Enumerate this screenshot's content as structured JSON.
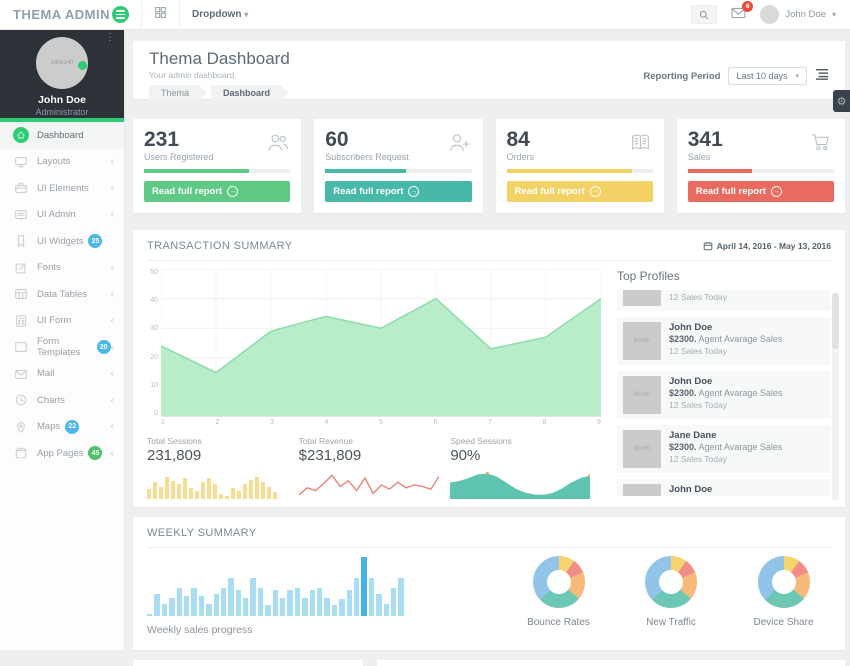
{
  "navbar": {
    "brand": "THEMA ADMIN",
    "dropdown_label": "Dropdown",
    "mail_badge": "6",
    "user_name": "John Doe"
  },
  "sidebar": {
    "user": {
      "name": "John Doe",
      "role": "Administrator",
      "avatar_placeholder": "140x140"
    },
    "items": [
      {
        "label": "Dashboard",
        "icon": "home",
        "active": true
      },
      {
        "label": "Layouts",
        "icon": "monitor",
        "chevron": true
      },
      {
        "label": "UI Elements",
        "icon": "briefcase",
        "chevron": true
      },
      {
        "label": "UI Admin",
        "icon": "screen",
        "chevron": true
      },
      {
        "label": "UI Widgets",
        "icon": "bookmark",
        "badge": "25",
        "badge_color": "#4db7ea"
      },
      {
        "label": "Fonts",
        "icon": "edit",
        "chevron": true
      },
      {
        "label": "Data Tables",
        "icon": "table",
        "chevron": true
      },
      {
        "label": "UI Form",
        "icon": "calculator",
        "chevron": true
      },
      {
        "label": "Form Templates",
        "icon": "window",
        "badge": "20",
        "badge_color": "#4db7ea",
        "chevron": true
      },
      {
        "label": "Mail",
        "icon": "mail",
        "chevron": true
      },
      {
        "label": "Charts",
        "icon": "clock",
        "chevron": true
      },
      {
        "label": "Maps",
        "icon": "pin",
        "badge": "22",
        "badge_color": "#4db7ea",
        "chevron": true
      },
      {
        "label": "App Pages",
        "icon": "package",
        "badge": "45",
        "badge_color": "#50c168",
        "chevron": true
      }
    ]
  },
  "header": {
    "title": "Thema Dashboard",
    "subtitle": "Your admin dashboard.",
    "breadcrumb": [
      "Thema",
      "Dashboard"
    ],
    "reporting_label": "Reporting Period",
    "reporting_value": "Last 10 days"
  },
  "stat_cards": [
    {
      "value": "231",
      "label": "Users Registered",
      "icon": "users",
      "color": "#5fca86",
      "progress": 72,
      "button": "Read full report"
    },
    {
      "value": "60",
      "label": "Subscribers Request",
      "icon": "user-plus",
      "color": "#48b8a9",
      "progress": 55,
      "button": "Read full report"
    },
    {
      "value": "84",
      "label": "Orders",
      "icon": "journal",
      "color": "#f2d264",
      "progress": 86,
      "button": "Read full report"
    },
    {
      "value": "341",
      "label": "Sales",
      "icon": "cart",
      "color": "#e96a5f",
      "progress": 44,
      "button": "Read full report"
    }
  ],
  "transaction": {
    "title": "TRANSACTION SUMMARY",
    "date_range": "April 14, 2016 - May 13, 2016",
    "chart_data": {
      "type": "area",
      "x": [
        1,
        2,
        3,
        4,
        5,
        6,
        7,
        8,
        9
      ],
      "values": [
        24,
        15,
        29,
        34,
        30,
        40,
        23,
        27,
        40
      ],
      "ylim": [
        0,
        50
      ],
      "yticks": [
        0,
        10,
        20,
        30,
        40,
        50
      ],
      "fill": "#b9edca",
      "stroke": "#8edbab",
      "grid": true
    },
    "mini_stats": [
      {
        "label": "Total Sessions",
        "value": "231,809",
        "spark": "bars",
        "color": "#f6dd92",
        "data": [
          35,
          60,
          45,
          80,
          65,
          55,
          75,
          40,
          28,
          60,
          75,
          55,
          20,
          12,
          40,
          28,
          55,
          68,
          80,
          60,
          45,
          25
        ]
      },
      {
        "label": "Total Revenue",
        "value": "$231,809",
        "spark": "line",
        "color": "#e8837a",
        "data": [
          15,
          40,
          30,
          55,
          85,
          45,
          65,
          30,
          75,
          20,
          50,
          35,
          60,
          40,
          50,
          45,
          35,
          80
        ]
      },
      {
        "label": "Speed Sessions",
        "value": "90%",
        "spark": "area",
        "color": "#5fc3b2",
        "data": [
          55,
          60,
          70,
          82,
          85,
          75,
          55,
          35,
          22,
          15,
          14,
          20,
          35,
          55,
          70,
          78
        ]
      }
    ],
    "profiles": {
      "title": "Top Profiles",
      "avatar_placeholder": "80x80",
      "items": [
        {
          "name": "",
          "sales_bold": "",
          "sales_rest": "",
          "today": "12 Sales Today",
          "clipped": true
        },
        {
          "name": "John Doe",
          "sales_bold": "$2300.",
          "sales_rest": " Agent Avarage Sales",
          "today": "12 Sales Today"
        },
        {
          "name": "John Doe",
          "sales_bold": "$2300.",
          "sales_rest": " Agent Avarage Sales",
          "today": "12 Sales Today"
        },
        {
          "name": "Jane Dane",
          "sales_bold": "$2300.",
          "sales_rest": " Agent Avarage Sales",
          "today": "12 Sales Today"
        },
        {
          "name": "John Doe",
          "sales_bold": "$2300.",
          "sales_rest": " Agent Avarage Sales",
          "today": "12 Sales Today"
        }
      ]
    }
  },
  "weekly": {
    "title": "WEEKLY SUMMARY",
    "caption": "Weekly sales progress",
    "bars_chart": {
      "type": "bar",
      "values": [
        4,
        36,
        20,
        30,
        46,
        32,
        46,
        32,
        20,
        36,
        46,
        62,
        42,
        30,
        62,
        46,
        18,
        42,
        30,
        42,
        46,
        30,
        42,
        46,
        30,
        18,
        28,
        42,
        62,
        96,
        62,
        36,
        20,
        46,
        62
      ],
      "highlight_index": 29,
      "color": "#a9ddf3",
      "highlight_color": "#45b2e2"
    },
    "donuts": [
      {
        "label": "Bounce Rates"
      },
      {
        "label": "New Traffic"
      },
      {
        "label": "Device Share"
      }
    ],
    "donut_segments": [
      {
        "color": "#f6d56c",
        "pct": 10
      },
      {
        "color": "#f28e86",
        "pct": 9
      },
      {
        "color": "#f6b97c",
        "pct": 17
      },
      {
        "color": "#6cc8b2",
        "pct": 27
      },
      {
        "color": "#92c3e9",
        "pct": 37
      }
    ]
  }
}
